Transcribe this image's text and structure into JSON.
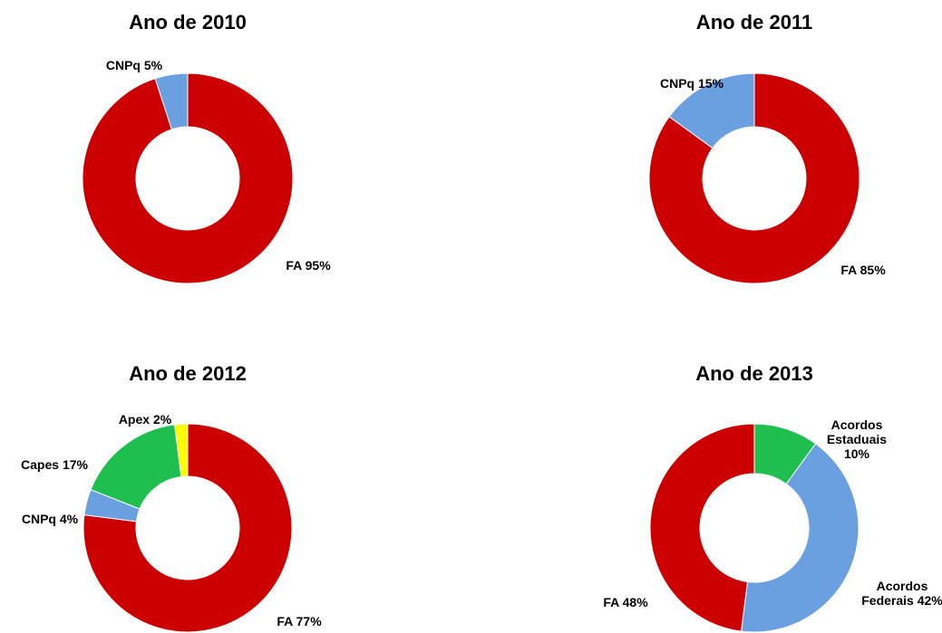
{
  "chart_data": [
    {
      "type": "donut",
      "title": "Ano de 2010",
      "categories": [
        "FA",
        "CNPq"
      ],
      "values": [
        95,
        5
      ],
      "value_labels": [
        "95%",
        "5%"
      ],
      "colors": [
        "#cc0000",
        "#6a9fe0"
      ]
    },
    {
      "type": "donut",
      "title": "Ano de 2011",
      "categories": [
        "FA",
        "CNPq"
      ],
      "values": [
        85,
        15
      ],
      "value_labels": [
        "85%",
        "15%"
      ],
      "colors": [
        "#cc0000",
        "#6a9fe0"
      ]
    },
    {
      "type": "donut",
      "title": "Ano de 2012",
      "categories": [
        "FA",
        "CNPq",
        "Capes",
        "Apex"
      ],
      "values": [
        77,
        4,
        17,
        2
      ],
      "value_labels": [
        "77%",
        "4%",
        "17%",
        "2%"
      ],
      "colors": [
        "#cc0000",
        "#6a9fe0",
        "#1fbf4f",
        "#ffff00"
      ]
    },
    {
      "type": "donut",
      "title": "Ano de 2013",
      "categories": [
        "Acordos Estaduais",
        "Acordos Federais",
        "FA"
      ],
      "values": [
        10,
        42,
        48
      ],
      "value_labels": [
        "10%",
        "42%",
        "48%"
      ],
      "colors": [
        "#1fbf4f",
        "#6a9fe0",
        "#cc0000"
      ]
    }
  ]
}
